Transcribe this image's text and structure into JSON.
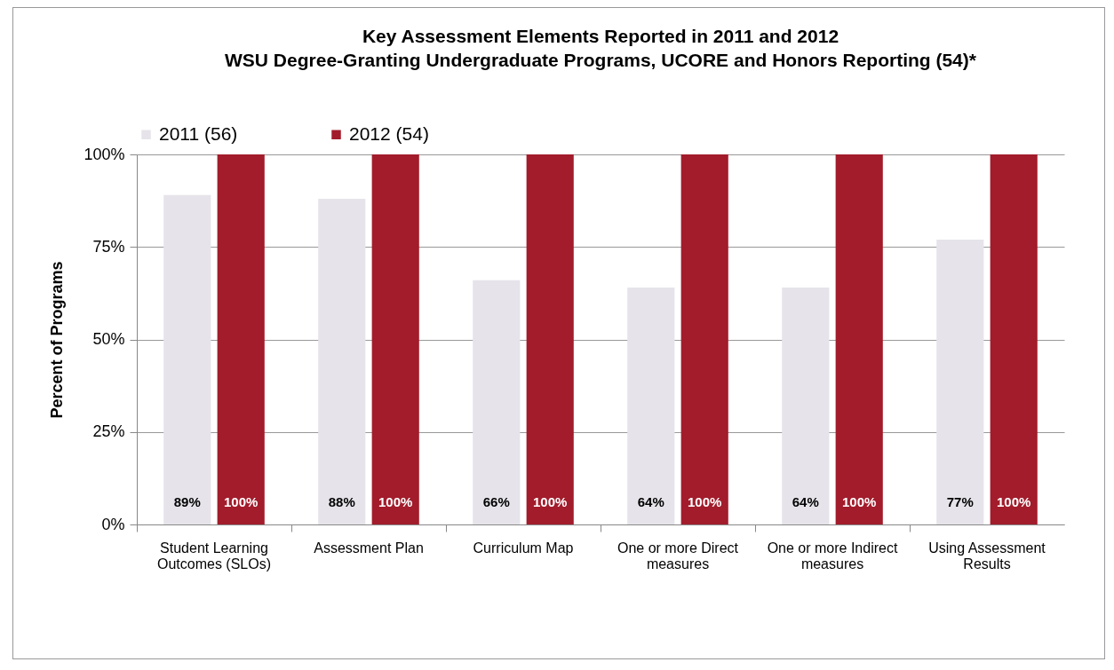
{
  "chart_data": {
    "type": "bar",
    "title": "Key Assessment Elements Reported in 2011 and 2012",
    "subtitle": "WSU Degree-Granting Undergraduate Programs, UCORE and Honors Reporting (54)*",
    "ylabel": "Percent of Programs",
    "categories": [
      "Student Learning Outcomes (SLOs)",
      "Assessment Plan",
      "Curriculum Map",
      "One or more Direct measures",
      "One or more Indirect measures",
      "Using Assessment Results"
    ],
    "series": [
      {
        "name": "2011 (56)",
        "color": "#e6e4ea",
        "values": [
          89,
          88,
          66,
          64,
          64,
          77
        ],
        "value_labels": [
          "89%",
          "88%",
          "66%",
          "64%",
          "64%",
          "77%"
        ]
      },
      {
        "name": "2012 (54)",
        "color": "#a21c2b",
        "values": [
          100,
          100,
          100,
          100,
          100,
          100
        ],
        "value_labels": [
          "100%",
          "100%",
          "100%",
          "100%",
          "100%",
          "100%"
        ]
      }
    ],
    "ylim": [
      0,
      100
    ],
    "yticks": [
      {
        "value": 0,
        "label": "0%"
      },
      {
        "value": 25,
        "label": "25%"
      },
      {
        "value": 50,
        "label": "50%"
      },
      {
        "value": 75,
        "label": "75%"
      },
      {
        "value": 100,
        "label": "100%"
      }
    ],
    "grid": "y",
    "legend": "top"
  }
}
